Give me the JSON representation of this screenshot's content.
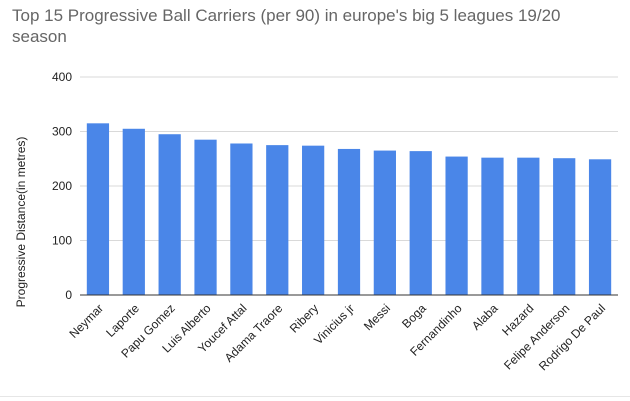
{
  "chart_data": {
    "type": "bar",
    "title": "Top 15 Progressive Ball Carriers (per 90) in europe's big 5 leagues 19/20 season",
    "xlabel": "",
    "ylabel": "Progressive Distance(in metres)",
    "ylim": [
      0,
      400
    ],
    "yticks": [
      0,
      100,
      200,
      300,
      400
    ],
    "grid": true,
    "legend": "none",
    "colors": {
      "bar": "#4a86e8",
      "grid": "#d9d9d9",
      "axis": "#333333",
      "text": "#222222",
      "title": "#666666"
    },
    "categories": [
      "Neymar",
      "Laporte",
      "Papu Gomez",
      "Luis Alberto",
      "Youcef Attal",
      "Adama Traore",
      "Ribery",
      "Vinicius jr",
      "Messi",
      "Boga",
      "Fernandinho",
      "Alaba",
      "Hazard",
      "Felipe Anderson",
      "Rodrigo De Paul"
    ],
    "series": [
      {
        "name": "Progressive Distance",
        "values": [
          315,
          305,
          295,
          285,
          278,
          275,
          274,
          268,
          265,
          264,
          254,
          252,
          252,
          251,
          249
        ]
      }
    ]
  }
}
